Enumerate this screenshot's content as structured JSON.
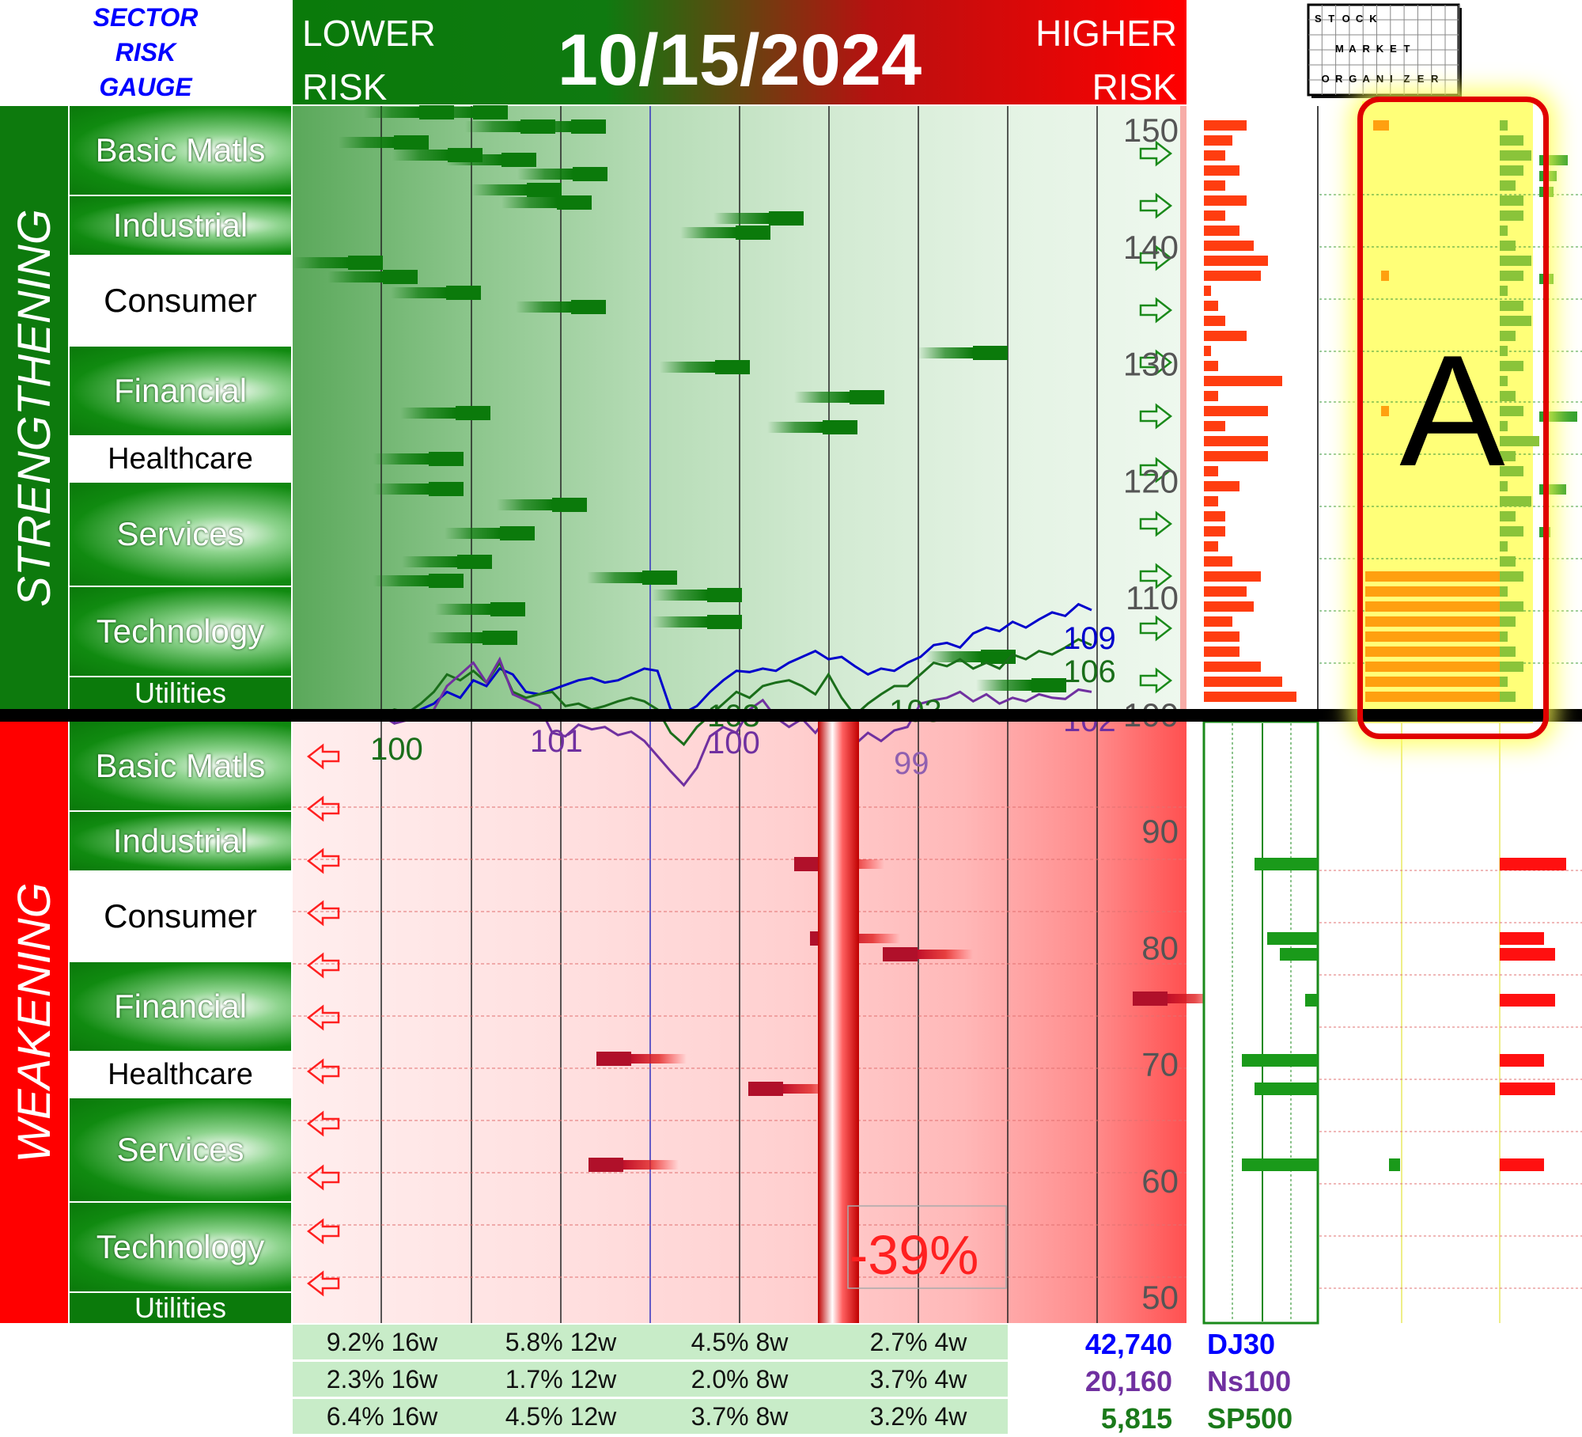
{
  "header": {
    "sector_title": [
      "SECTOR",
      "RISK",
      "GAUGE"
    ],
    "lower_risk": [
      "LOWER",
      "RISK"
    ],
    "higher_risk": [
      "HIGHER",
      "RISK"
    ],
    "date": "10/15/2024",
    "logo_words": [
      "STOCK",
      "MARKET",
      "ORGANIZER"
    ]
  },
  "sides": {
    "strengthening": "STRENGTHENING",
    "weakening": "WEAKENING"
  },
  "sectors_top": [
    "Basic Matls",
    "Industrial",
    "Consumer",
    "Financial",
    "Healthcare",
    "Services",
    "Technology",
    "Utilities"
  ],
  "sectors_bottom": [
    "Basic Matls",
    "Industrial",
    "Consumer",
    "Financial",
    "Healthcare",
    "Services",
    "Technology",
    "Utilities"
  ],
  "rating_letter": "A",
  "indices": [
    {
      "name": "DJ30",
      "value": "42,740",
      "color": "#0000ff",
      "stats": [
        "9.2% 16w",
        "5.8% 12w",
        "4.5% 8w",
        "2.7% 4w"
      ]
    },
    {
      "name": "Ns100",
      "value": "20,160",
      "color": "#7030a0",
      "stats": [
        "2.3% 16w",
        "1.7% 12w",
        "2.0% 8w",
        "3.7% 4w"
      ]
    },
    {
      "name": "SP500",
      "value": "5,815",
      "color": "#1a7a1a",
      "stats": [
        "6.4% 16w",
        "4.5% 12w",
        "3.7% 8w",
        "3.2% 4w"
      ]
    }
  ],
  "chart_data": {
    "type": "line",
    "title": "",
    "ylim": [
      45,
      152
    ],
    "yticks": [
      150,
      140,
      130,
      120,
      110,
      100,
      90,
      80,
      70,
      60,
      50
    ],
    "weakness_label": "-39%",
    "series": [
      {
        "name": "DJ30",
        "color": "#0000cc",
        "end_label": "109",
        "values": [
          100,
          99.5,
          100,
          100.5,
          101,
          102,
          101.5,
          103,
          102.5,
          104,
          103.5,
          102,
          101.8,
          102.2,
          102.6,
          103,
          103.2,
          102.8,
          103,
          103.5,
          104,
          103.8,
          100.5,
          100.2,
          100.8,
          102,
          103,
          103.8,
          103.7,
          104,
          103.8,
          104.5,
          105,
          105.5,
          104.8,
          105,
          104.2,
          103.5,
          104,
          103.8,
          104.5,
          105,
          106,
          106.2,
          105.8,
          107,
          107.5,
          107.2,
          108,
          107.5,
          108.2,
          108.8,
          108.5,
          109.5,
          109
        ]
      },
      {
        "name": "SP500",
        "color": "#1a6e1a",
        "end_label": "106",
        "values": [
          100,
          100.5,
          100.2,
          101,
          102,
          103.5,
          103,
          103.8,
          102.8,
          104.5,
          102,
          101.5,
          101.8,
          102,
          100.8,
          101,
          100.5,
          100.8,
          101.2,
          101.5,
          101.2,
          100.5,
          98.5,
          97.5,
          99,
          100,
          101,
          102,
          101.5,
          102.5,
          102.8,
          103,
          102.5,
          101.8,
          103.5,
          101.5,
          100,
          101,
          101.8,
          102.5,
          102.5,
          103.5,
          104.5,
          104.2,
          104.8,
          104,
          104.5,
          104,
          105.2,
          104.8,
          105.5,
          105.2,
          105.8,
          106.5,
          106
        ]
      },
      {
        "name": "Ns100",
        "color": "#7030a0",
        "end_label": "102",
        "values": [
          100,
          99.3,
          99.6,
          99.8,
          100.5,
          102.5,
          103.5,
          104.5,
          102.8,
          104.8,
          101.8,
          101.3,
          100.8,
          98.5,
          98.2,
          99.2,
          98.8,
          99,
          98.3,
          98.6,
          97.8,
          96.5,
          95.2,
          94,
          95.5,
          98.2,
          99,
          98.5,
          100.5,
          101.3,
          99.8,
          99,
          99.7,
          98.5,
          100,
          98.6,
          97.5,
          98.5,
          97.8,
          98.7,
          99,
          101,
          101.3,
          101.5,
          102,
          101.2,
          101.8,
          101,
          101.5,
          101.2,
          101.8,
          101.5,
          101.4,
          102.2,
          102
        ]
      }
    ],
    "annotations": [
      "100",
      "101",
      "103",
      "100",
      "103",
      "99"
    ],
    "right_histogram_upper_left": [
      6,
      4,
      3,
      5,
      3,
      6,
      3,
      5,
      7,
      9,
      8,
      1,
      2,
      3,
      6,
      1,
      2,
      11,
      2,
      9,
      3,
      9,
      9,
      2,
      5,
      2,
      3,
      3,
      2,
      4,
      8,
      6,
      7,
      4,
      5,
      5,
      8,
      11,
      13
    ],
    "right_histogram_upper_yellow_orange": [
      2,
      0,
      0,
      0,
      0,
      0,
      0,
      0,
      0,
      0,
      1,
      0,
      0,
      0,
      0,
      0,
      0,
      0,
      0,
      1,
      0,
      0,
      0,
      0,
      0,
      0,
      0,
      0,
      0,
      0,
      5,
      5,
      5,
      5,
      5,
      5,
      5,
      5,
      5
    ],
    "right_histogram_lower_green": [
      0,
      0,
      0,
      0,
      0,
      0,
      5,
      0,
      0,
      0,
      0,
      0,
      4,
      3,
      0,
      1,
      0,
      0,
      6,
      0,
      0,
      5,
      0,
      0,
      0,
      0,
      6,
      0
    ],
    "right_histogram_lower_red": [
      0,
      0,
      0,
      0,
      0,
      0,
      6,
      0,
      0,
      0,
      0,
      0,
      4,
      5,
      0,
      5,
      0,
      0,
      4,
      0,
      0,
      5,
      0,
      0,
      0,
      0,
      4,
      0
    ]
  }
}
